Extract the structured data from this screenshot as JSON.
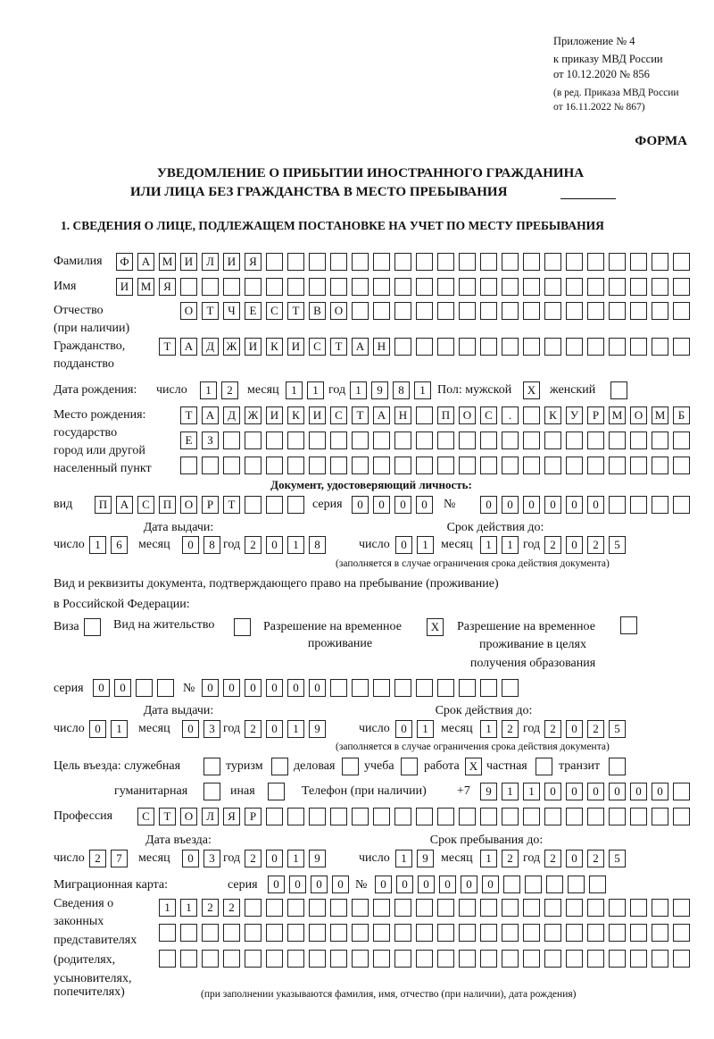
{
  "header": {
    "appendix": "Приложение № 4",
    "order": "к приказу МВД России",
    "order_date": "от 10.12.2020 № 856",
    "revision_1": "(в ред. Приказа МВД России",
    "revision_2": "от 16.11.2022 № 867)",
    "form_label": "ФОРМА",
    "title_1": "УВЕДОМЛЕНИЕ О ПРИБЫТИИ ИНОСТРАННОГО ГРАЖДАНИНА",
    "title_2": "ИЛИ ЛИЦА БЕЗ ГРАЖДАНСТВА В МЕСТО ПРЕБЫВАНИЯ",
    "section_1": "1. СВЕДЕНИЯ О ЛИЦЕ, ПОДЛЕЖАЩЕМ ПОСТАНОВКЕ НА УЧЕТ ПО МЕСТУ ПРЕБЫВАНИЯ"
  },
  "person": {
    "surname_label": "Фамилия",
    "surname": "ФАМИЛИЯ",
    "name_label": "Имя",
    "name": "ИМЯ",
    "patronymic_label_1": "Отчество",
    "patronymic_label_2": "(при наличии)",
    "patronymic": "ОТЧЕСТВО",
    "citizenship_label_1": "Гражданство,",
    "citizenship_label_2": "подданство",
    "citizenship": "ТАДЖИКИСТАН",
    "dob_label": "Дата рождения:",
    "day_label": "число",
    "month_label": "месяц",
    "year_label": "год",
    "dob_day": "12",
    "dob_month": "11",
    "dob_year": "1981",
    "sex_label": "Пол: мужской",
    "male": "X",
    "female_label": "женский",
    "female": "",
    "birthplace_label_1": "Место рождения:",
    "birthplace_label_2": "государство",
    "birthplace_label_3": "город или другой",
    "birthplace_label_4": "населенный пункт",
    "birthplace_1": "ТАДЖИКИСТАН ПОС. КУРМОМБ",
    "birthplace_2": "ЕЗ",
    "birthplace_3": ""
  },
  "id_doc": {
    "heading": "Документ, удостоверяющий личность:",
    "type_label": "вид",
    "type": "ПАСПОРТ",
    "series_label": "серия",
    "series": "0000",
    "number_label": "№",
    "number": "000000",
    "issue_label": "Дата выдачи:",
    "valid_label": "Срок действия до:",
    "day_label": "число",
    "month_label": "месяц",
    "year_label": "год",
    "issue_day": "16",
    "issue_month": "08",
    "issue_year": "2018",
    "valid_day": "01",
    "valid_month": "11",
    "valid_year": "2025",
    "note": "(заполняется в случае ограничения срока действия документа)"
  },
  "stay_doc": {
    "heading_1": "Вид и реквизиты документа, подтверждающего право на пребывание (проживание)",
    "heading_2": "в Российской Федерации:",
    "visa_label": "Виза",
    "visa": "",
    "residence_label": "Вид на жительство",
    "residence": "",
    "trp_label_1": "Разрешение на временное",
    "trp_label_2": "проживание",
    "trp": "X",
    "trp_edu_label_1": "Разрешение на временное",
    "trp_edu_label_2": "проживание в целях",
    "trp_edu_label_3": "получения образования",
    "trp_edu": "",
    "series_label": "серия",
    "series": "00",
    "number_label": "№",
    "number": "000000",
    "issue_label": "Дата выдачи:",
    "valid_label": "Срок действия до:",
    "day_label": "число",
    "month_label": "месяц",
    "year_label": "год",
    "issue_day": "01",
    "issue_month": "03",
    "issue_year": "2019",
    "valid_day": "01",
    "valid_month": "12",
    "valid_year": "2025",
    "note": "(заполняется в случае ограничения срока действия документа)"
  },
  "purpose": {
    "label": "Цель въезда: служебная",
    "official": "",
    "tourism_label": "туризм",
    "tourism": "",
    "business_label": "деловая",
    "business": "",
    "study_label": "учеба",
    "study": "",
    "work_label": "работа",
    "work": "X",
    "private_label": "частная",
    "private": "",
    "transit_label": "транзит",
    "transit": "",
    "humanitarian_label": "гуманитарная",
    "humanitarian": "",
    "other_label": "иная",
    "other": "",
    "phone_label": "Телефон (при наличии)",
    "phone_prefix": "+7",
    "phone": "911000000"
  },
  "profession": {
    "label": "Профессия",
    "value": "СТОЛЯР"
  },
  "entry": {
    "entry_label": "Дата въезда:",
    "stay_until_label": "Срок пребывания до:",
    "day_label": "число",
    "month_label": "месяц",
    "year_label": "год",
    "entry_day": "27",
    "entry_month": "03",
    "entry_year": "2019",
    "until_day": "19",
    "until_month": "12",
    "until_year": "2025"
  },
  "migration_card": {
    "label": "Миграционная карта:",
    "series_label": "серия",
    "series": "0000",
    "number_label": "№",
    "number": "000000"
  },
  "representatives": {
    "label_1": "Сведения о",
    "label_2": "законных",
    "label_3": "представителях",
    "label_4": "(родителях,",
    "label_5": "усыновителях,",
    "label_6": "попечителях)",
    "row_1": "1122",
    "row_2": "",
    "row_3": "",
    "note": "(при заполнении указываются фамилия, имя, отчество (при наличии), дата рождения)"
  }
}
